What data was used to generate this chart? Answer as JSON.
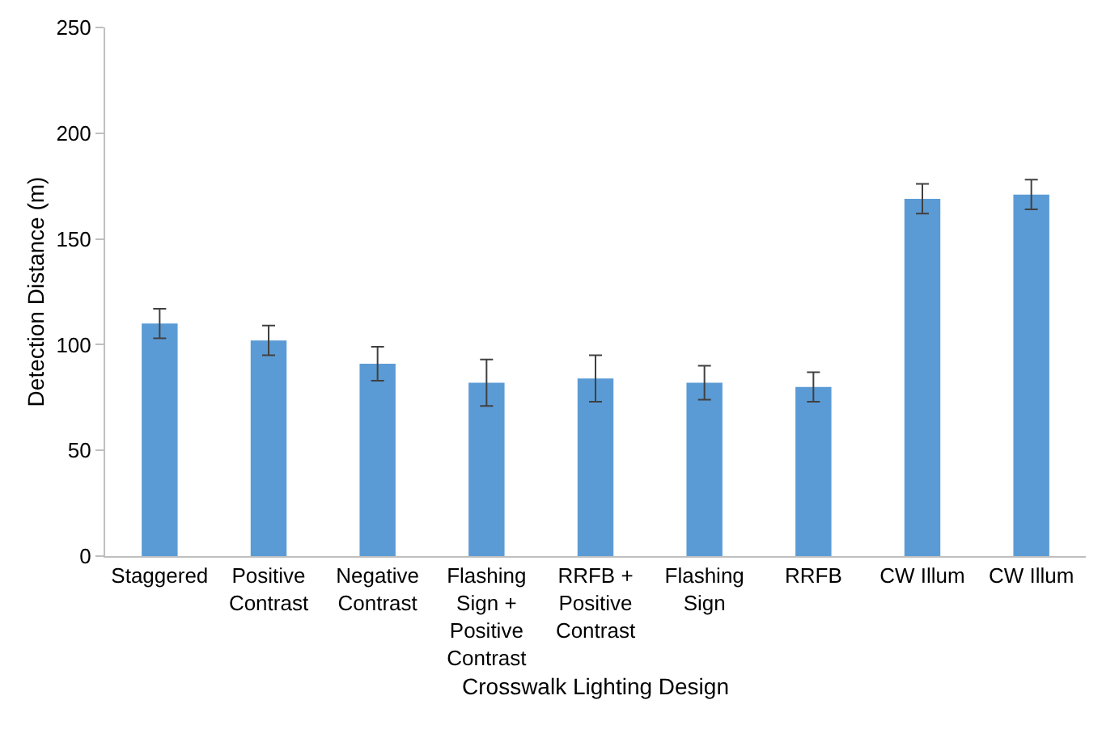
{
  "chart_data": {
    "type": "bar",
    "xlabel": "Crosswalk Lighting Design",
    "ylabel": "Detection Distance (m)",
    "categories": [
      "Staggered",
      "Positive Contrast",
      "Negative Contrast",
      "Flashing Sign + Positive Contrast",
      "RRFB + Positive Contrast",
      "Flashing Sign",
      "RRFB",
      "CW Illum",
      "CW Illum"
    ],
    "values": [
      110,
      102,
      91,
      82,
      84,
      82,
      80,
      169,
      171
    ],
    "errors": [
      7,
      7,
      8,
      11,
      11,
      8,
      7,
      7,
      7
    ],
    "color": "#5b9bd5",
    "ylim": [
      0,
      250
    ],
    "yticks": [
      0,
      50,
      100,
      150,
      200,
      250
    ],
    "grid": false,
    "legend": false
  }
}
